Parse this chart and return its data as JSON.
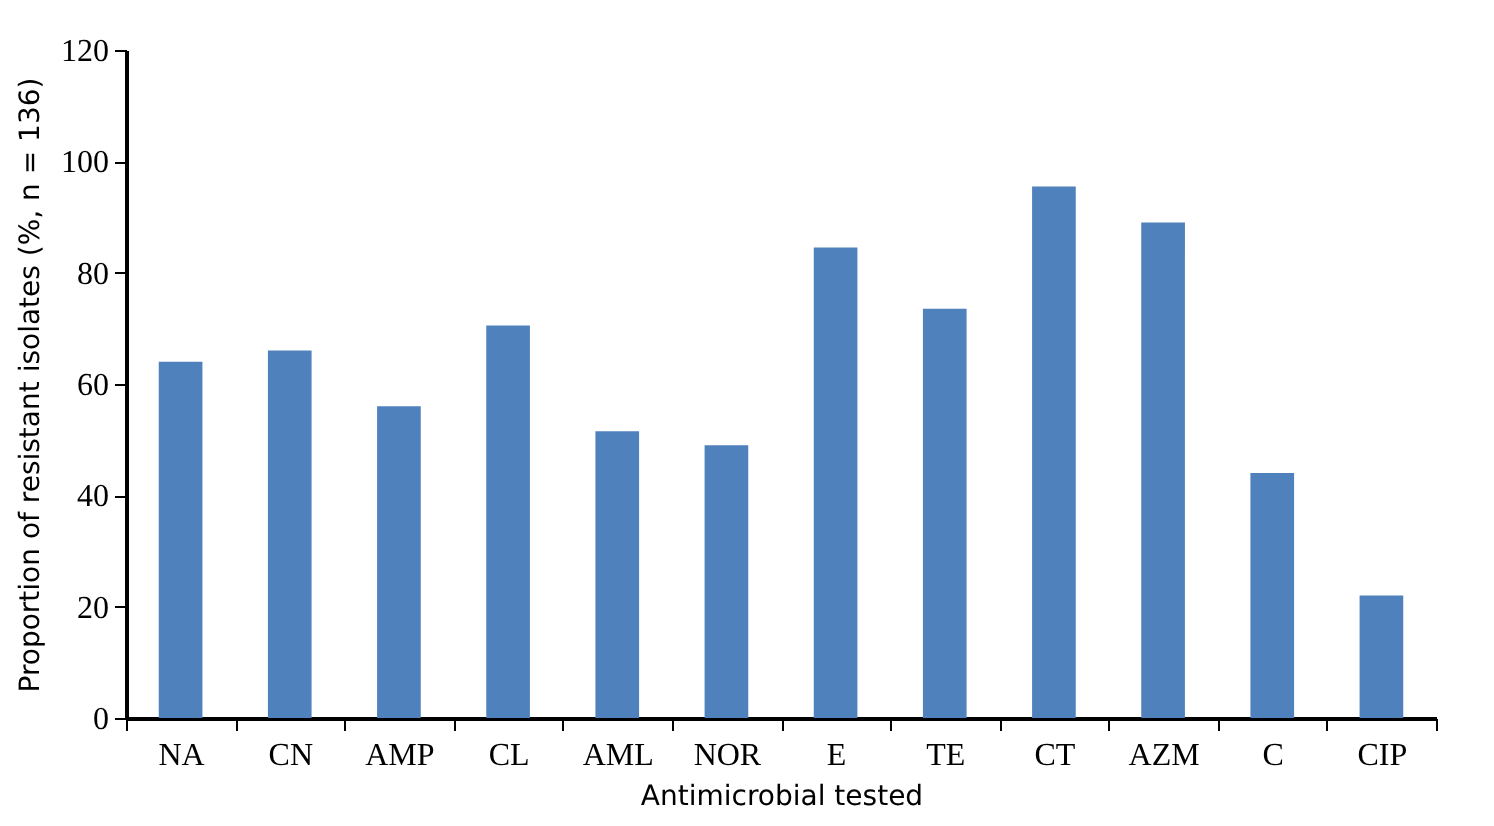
{
  "chart_data": {
    "type": "bar",
    "xlabel": "Antimicrobial tested",
    "ylabel": "Proportion of resistant isolates (%, n = 136)",
    "categories": [
      "NA",
      "CN",
      "AMP",
      "CL",
      "AML",
      "NOR",
      "E",
      "TE",
      "CT",
      "AZM",
      "C",
      "CIP"
    ],
    "values": [
      64,
      66,
      56,
      70.5,
      51.5,
      49,
      84.5,
      73.5,
      95.5,
      89,
      44,
      22
    ],
    "color": "#4f81bd",
    "ylim": [
      0,
      120
    ],
    "yticks": [
      0,
      20,
      40,
      60,
      80,
      100,
      120
    ],
    "grid": false
  }
}
